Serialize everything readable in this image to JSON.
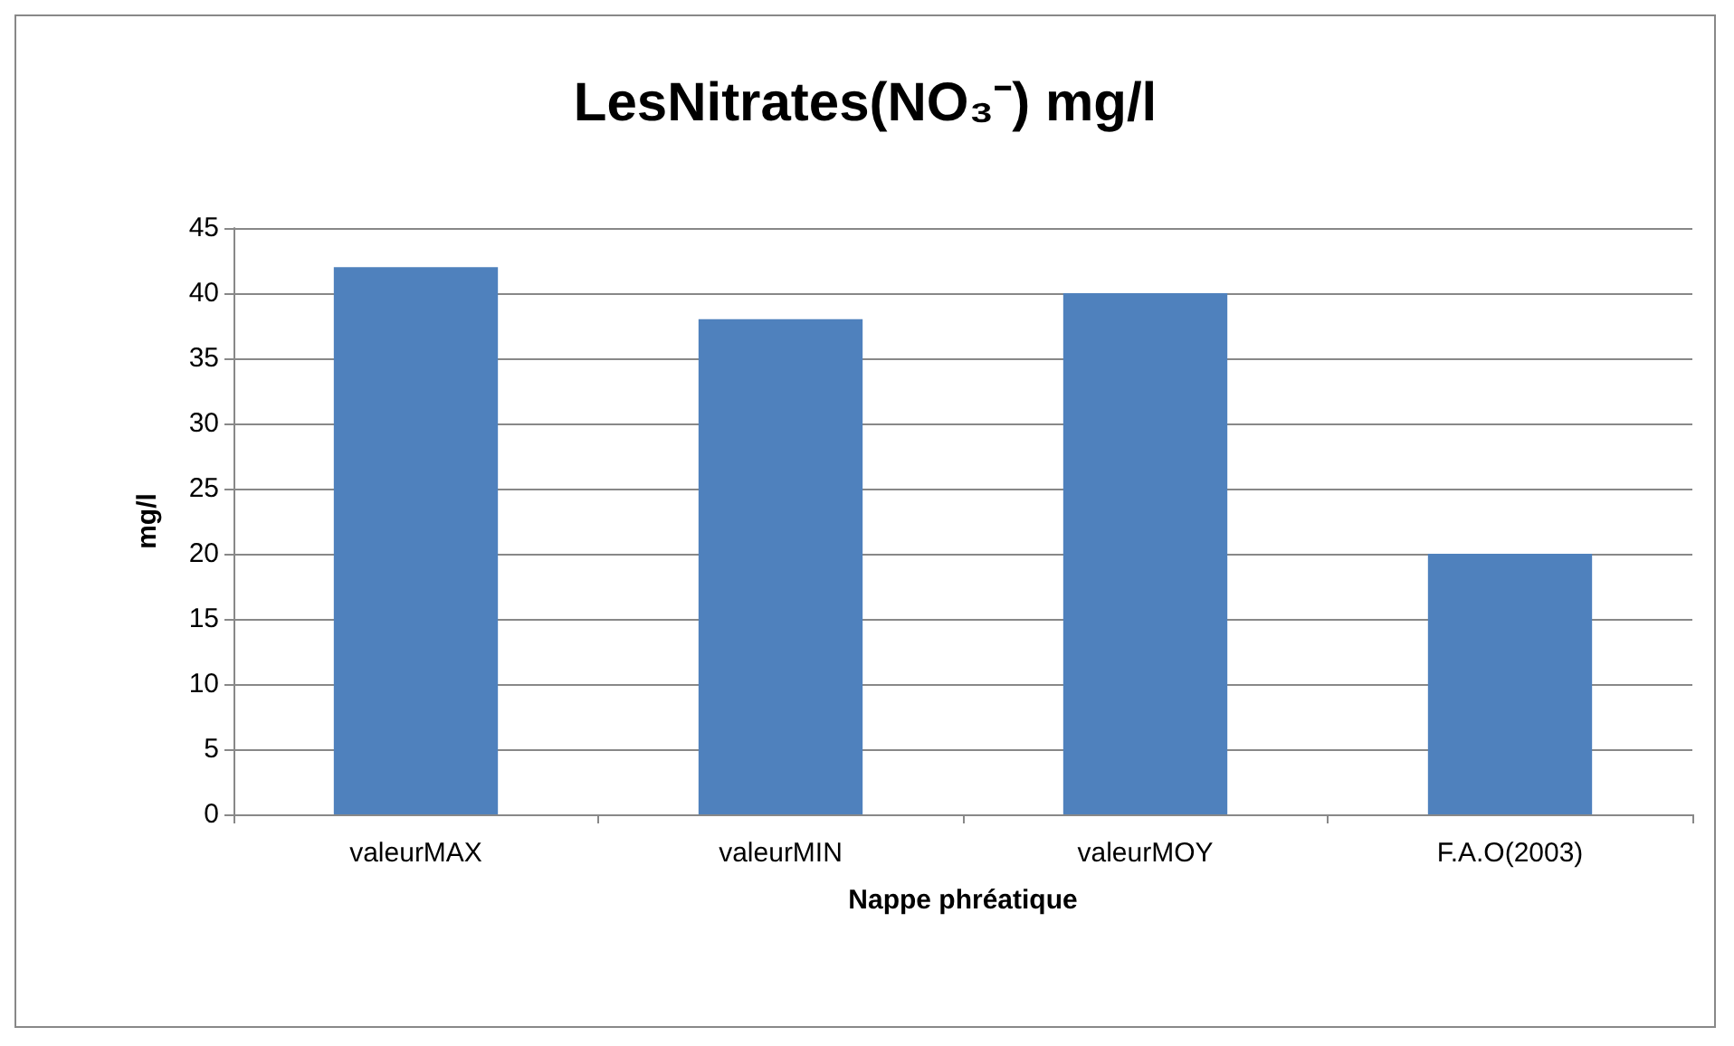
{
  "chart_data": {
    "type": "bar",
    "title": "LesNitrates(NO₃⁻) mg/l",
    "xlabel": "Nappe phréatique",
    "ylabel": "mg/l",
    "categories": [
      "valeurMAX",
      "valeurMIN",
      "valeurMOY",
      "F.A.O(2003)"
    ],
    "values": [
      42,
      38,
      40,
      20
    ],
    "color": "#4f81bd",
    "ylim": [
      0,
      45
    ],
    "yticks": [
      0,
      5,
      10,
      15,
      20,
      25,
      30,
      35,
      40,
      45
    ],
    "grid": "y"
  }
}
